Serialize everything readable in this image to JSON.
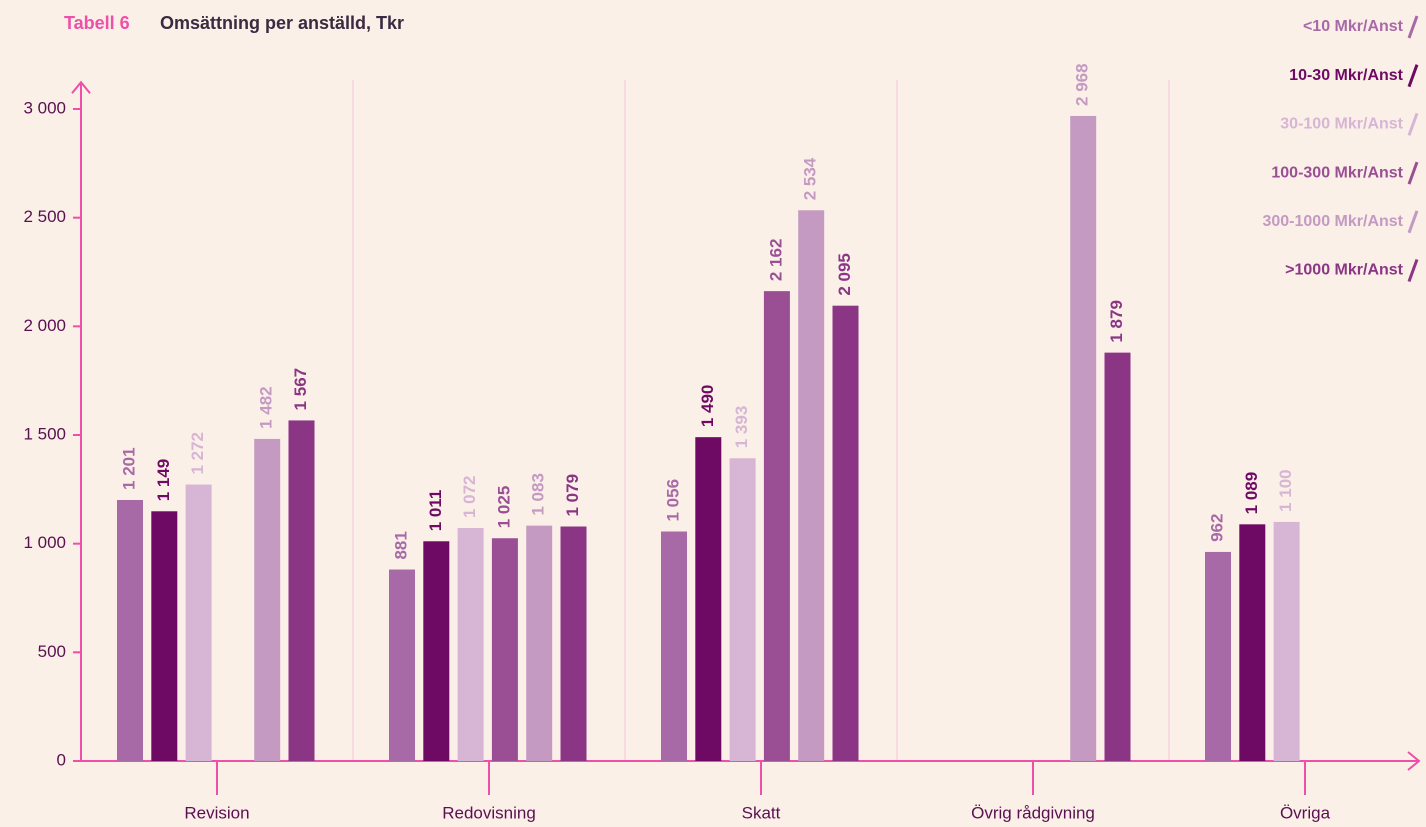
{
  "chart_data": {
    "type": "bar",
    "title_label": "Tabell 6",
    "title": "Omsättning per anställd, Tkr",
    "categories": [
      "Revision",
      "Redovisning",
      "Skatt",
      "Övrig rådgivning",
      "Övriga"
    ],
    "series": [
      {
        "name": "<10 Mkr/Anst",
        "color": "#a86aa6",
        "values": [
          1201,
          881,
          1056,
          null,
          962
        ],
        "value_labels": [
          "1 201",
          "881",
          "1 056",
          null,
          "962"
        ]
      },
      {
        "name": "10-30 Mkr/Anst",
        "color": "#6e0a63",
        "values": [
          1149,
          1011,
          1490,
          null,
          1089
        ],
        "value_labels": [
          "1 149",
          "1 011",
          "1 490",
          null,
          "1 089"
        ]
      },
      {
        "name": "30-100 Mkr/Anst",
        "color": "#d7b5d4",
        "values": [
          1272,
          1072,
          1393,
          null,
          1100
        ],
        "value_labels": [
          "1 272",
          "1 072",
          "1 393",
          null,
          "1 100"
        ]
      },
      {
        "name": "100-300 Mkr/Anst",
        "color": "#9a4f94",
        "values": [
          null,
          1025,
          2162,
          null,
          null
        ],
        "value_labels": [
          null,
          "1 025",
          "2 162",
          null,
          null
        ]
      },
      {
        "name": "300-1000 Mkr/Anst",
        "color": "#c49ac2",
        "values": [
          1482,
          1083,
          2534,
          2968,
          null
        ],
        "value_labels": [
          "1 482",
          "1 083",
          "2 534",
          "2 968",
          null
        ]
      },
      {
        "name": ">1000 Mkr/Anst",
        "color": "#8b3585",
        "values": [
          1567,
          1079,
          2095,
          1879,
          null
        ],
        "value_labels": [
          "1 567",
          "1 079",
          "2 095",
          "1 879",
          null
        ]
      }
    ],
    "ylim": [
      0,
      3100
    ],
    "yticks": [
      0,
      500,
      {
        "value": 1000,
        "label": "1 000"
      },
      {
        "value": 1500,
        "label": "1 500"
      },
      {
        "value": 2000,
        "label": "2 000"
      },
      {
        "value": 2500,
        "label": "2 500"
      },
      {
        "value": 3000,
        "label": "3 000"
      }
    ],
    "legend": "top-right"
  }
}
